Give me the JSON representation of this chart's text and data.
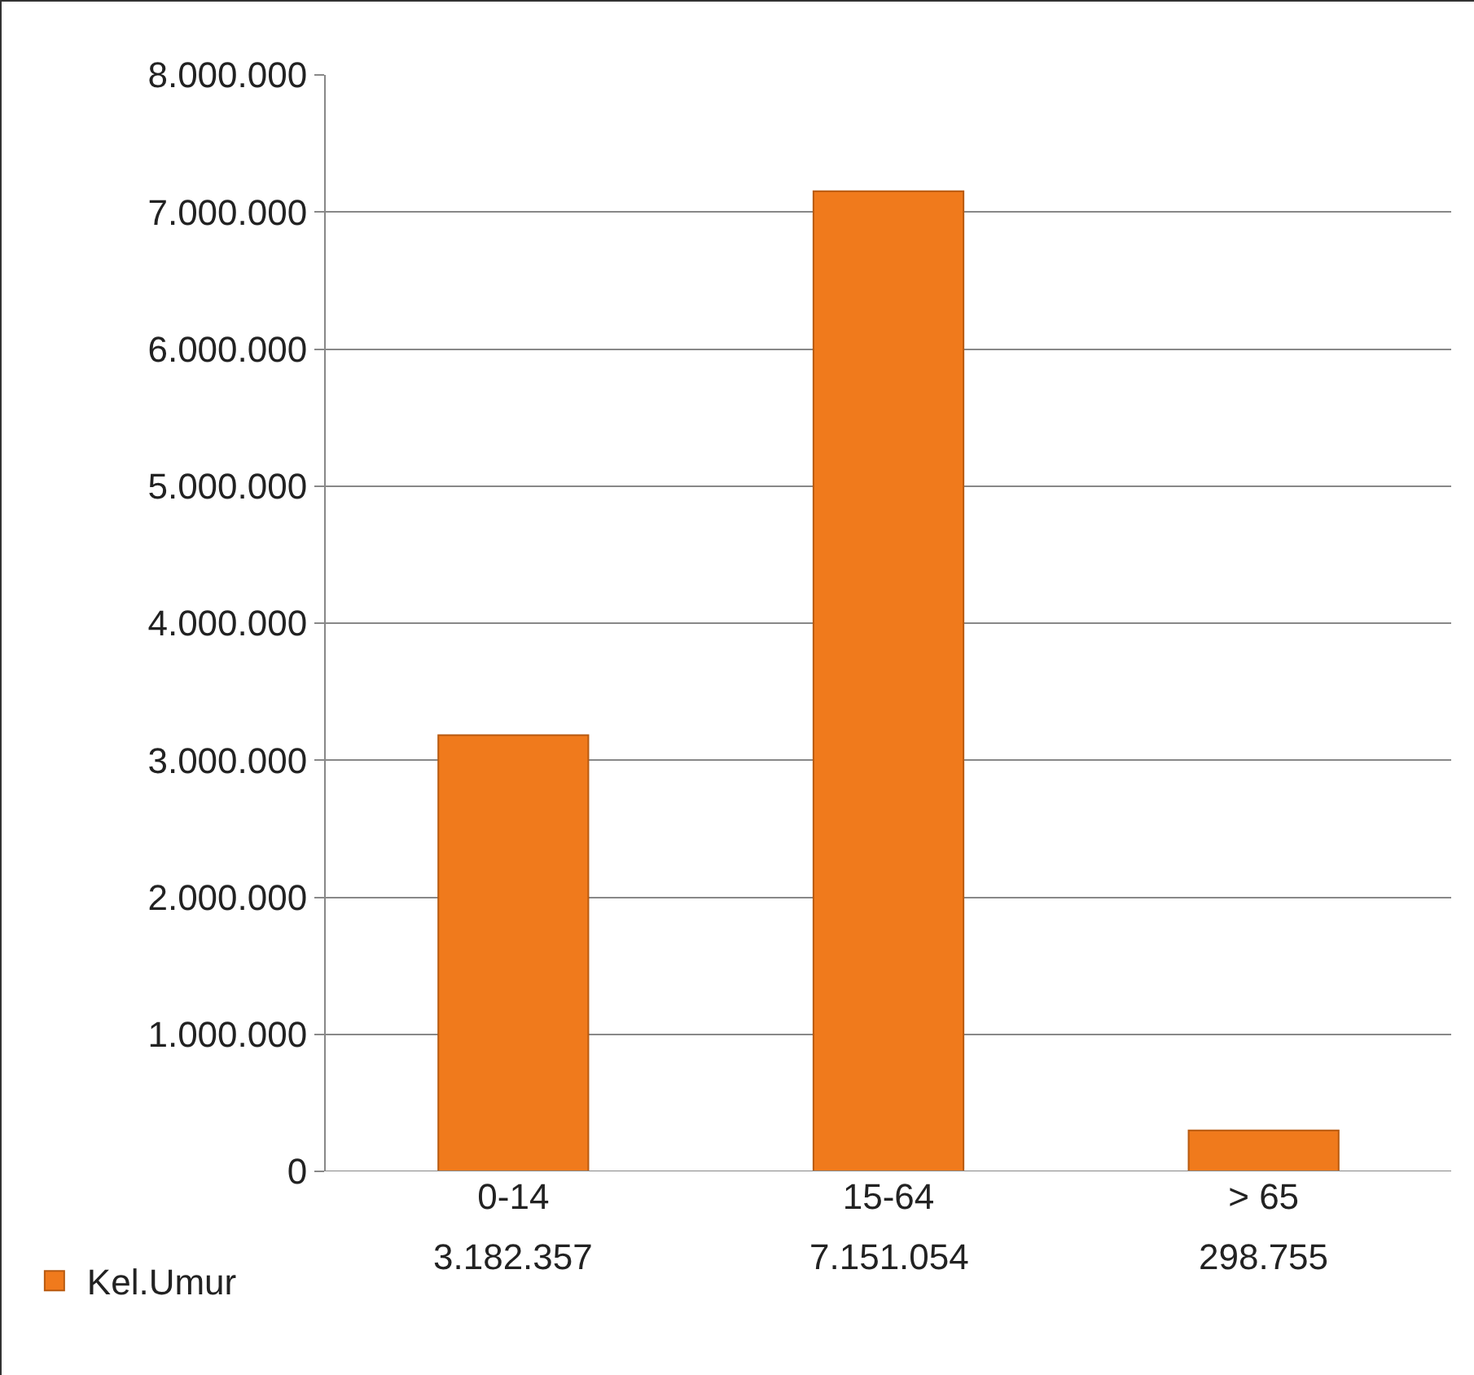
{
  "chart_data": {
    "type": "bar",
    "categories": [
      "0-14",
      "15-64",
      "> 65"
    ],
    "series": [
      {
        "name": "Kel.Umur",
        "color": "#f07a1c",
        "values": [
          3182357,
          7151054,
          298755
        ],
        "value_labels": [
          "3.182.357",
          "7.151.054",
          "298.755"
        ]
      }
    ],
    "ylim": [
      0,
      8000000
    ],
    "yticks": [
      {
        "value": 0,
        "label": "0"
      },
      {
        "value": 1000000,
        "label": "1.000.000"
      },
      {
        "value": 2000000,
        "label": "2.000.000"
      },
      {
        "value": 3000000,
        "label": "3.000.000"
      },
      {
        "value": 4000000,
        "label": "4.000.000"
      },
      {
        "value": 5000000,
        "label": "5.000.000"
      },
      {
        "value": 6000000,
        "label": "6.000.000"
      },
      {
        "value": 7000000,
        "label": "7.000.000"
      },
      {
        "value": 8000000,
        "label": "8.000.000"
      }
    ],
    "grid": "y",
    "legend": "bottom left"
  }
}
